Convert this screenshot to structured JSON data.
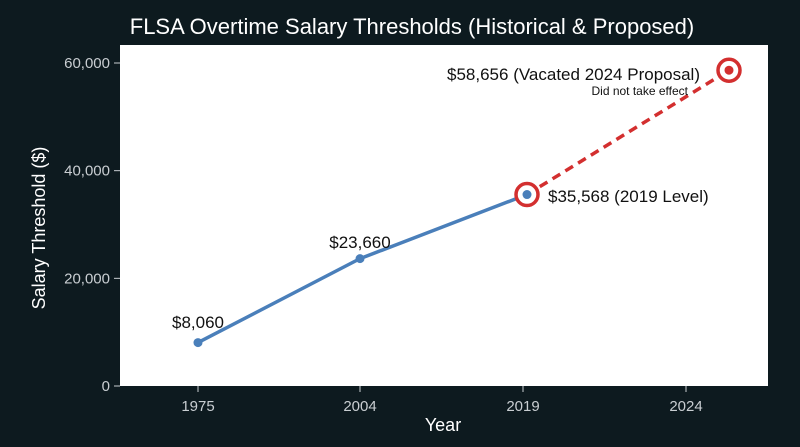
{
  "chart_data": {
    "type": "line",
    "title": "FLSA Overtime Salary Thresholds (Historical & Proposed)",
    "xlabel": "Year",
    "ylabel": "Salary Threshold ($)",
    "categories": [
      "1975",
      "2004",
      "2019",
      "2024"
    ],
    "ylim": [
      0,
      60000
    ],
    "yticks": [
      0,
      20000,
      40000,
      60000
    ],
    "ytick_labels": [
      "0",
      "20,000",
      "40,000",
      "60,000"
    ],
    "grid": false,
    "series": [
      {
        "style": "solid",
        "color": "#4a7fba",
        "points": [
          {
            "x": "1975",
            "y": 8060,
            "label": "$8,060"
          },
          {
            "x": "2004",
            "y": 23660,
            "label": "$23,660"
          },
          {
            "x": "2019",
            "y": 35568,
            "label": "$35,568 (2019 Level)"
          }
        ]
      },
      {
        "style": "dashed",
        "color": "#d32f2f",
        "points": [
          {
            "x": "2019",
            "y": 35568
          },
          {
            "x": "2024",
            "y": 58656,
            "label": "$58,656 (Vacated 2024 Proposal)",
            "note": "Did not take effect"
          }
        ]
      }
    ],
    "highlighted_points": [
      "2019",
      "2024"
    ],
    "colors": {
      "background": "#0d1a1f",
      "plot_background": "#ffffff",
      "historical_line": "#4a7fba",
      "proposal_line": "#d32f2f",
      "highlight_ring": "#d32f2f"
    }
  }
}
